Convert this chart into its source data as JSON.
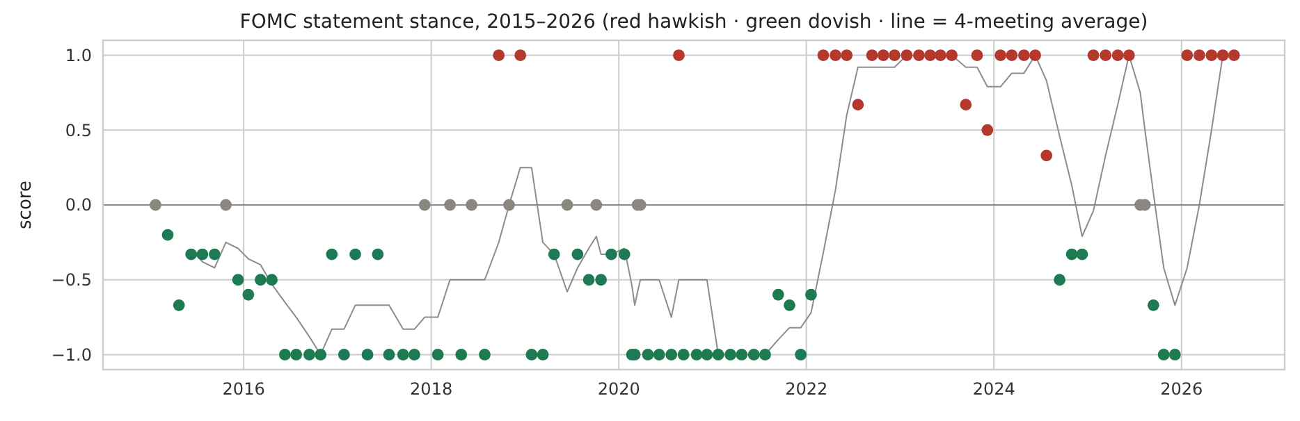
{
  "chart_data": {
    "type": "scatter",
    "title": "FOMC statement stance, 2015–2026 (red hawkish · green dovish · line = 4-meeting average)",
    "ylabel": "score",
    "xlim": [
      2014.5,
      2027.1
    ],
    "xticks": [
      2016,
      2018,
      2020,
      2022,
      2024,
      2026
    ],
    "ylim": [
      -1.1,
      1.1
    ],
    "yticks": [
      {
        "value": -1,
        "label": "−1.0"
      },
      {
        "value": -0.5,
        "label": "−0.5"
      },
      {
        "value": 0,
        "label": "0.0"
      },
      {
        "value": 0.5,
        "label": "0.5"
      },
      {
        "value": 1,
        "label": "1.0"
      }
    ],
    "grid": true,
    "marker": "circle",
    "ref_lines": [
      {
        "axis": "y",
        "value": 0,
        "label": null,
        "color": "#8a8a8a"
      }
    ],
    "series": [
      {
        "type": "line",
        "color": "#8c8c8c",
        "marker": "none",
        "line_style": "solid",
        "x": [
          2015.44,
          2015.56,
          2015.69,
          2015.81,
          2015.94,
          2016.05,
          2016.18,
          2016.3,
          2016.44,
          2016.56,
          2016.7,
          2016.82,
          2016.94,
          2017.07,
          2017.19,
          2017.32,
          2017.43,
          2017.55,
          2017.7,
          2017.82,
          2017.93,
          2018.07,
          2018.2,
          2018.32,
          2018.43,
          2018.57,
          2018.72,
          2018.83,
          2018.95,
          2019.07,
          2019.19,
          2019.31,
          2019.45,
          2019.56,
          2019.68,
          2019.76,
          2019.81,
          2019.92,
          2020.06,
          2020.14,
          2020.17,
          2020.2,
          2020.23,
          2020.31,
          2020.43,
          2020.56,
          2020.64,
          2020.69,
          2020.83,
          2020.94,
          2021.06,
          2021.19,
          2021.31,
          2021.44,
          2021.56,
          2021.7,
          2021.82,
          2021.94,
          2022.05,
          2022.18,
          2022.31,
          2022.43,
          2022.55,
          2022.7,
          2022.82,
          2022.94,
          2023.07,
          2023.2,
          2023.32,
          2023.43,
          2023.55,
          2023.7,
          2023.82,
          2023.93,
          2024.07,
          2024.19,
          2024.32,
          2024.44,
          2024.56,
          2024.7,
          2024.83,
          2024.94,
          2025.06,
          2025.19,
          2025.32,
          2025.44,
          2025.56,
          2025.61,
          2025.7,
          2025.81,
          2025.93,
          2026.06,
          2026.19,
          2026.32,
          2026.44,
          2026.56
        ],
        "values": [
          -0.3,
          -0.38,
          -0.42,
          -0.25,
          -0.29,
          -0.36,
          -0.4,
          -0.53,
          -0.65,
          -0.75,
          -0.88,
          -1,
          -0.83,
          -0.83,
          -0.67,
          -0.67,
          -0.67,
          -0.67,
          -0.83,
          -0.83,
          -0.75,
          -0.75,
          -0.5,
          -0.5,
          -0.5,
          -0.5,
          -0.25,
          0,
          0.25,
          0.25,
          -0.25,
          -0.33,
          -0.58,
          -0.42,
          -0.29,
          -0.21,
          -0.33,
          -0.33,
          -0.29,
          -0.54,
          -0.67,
          -0.58,
          -0.5,
          -0.5,
          -0.5,
          -0.75,
          -0.5,
          -0.5,
          -0.5,
          -0.5,
          -1,
          -1,
          -1,
          -1,
          -1,
          -0.9,
          -0.82,
          -0.82,
          -0.72,
          -0.32,
          0.1,
          0.6,
          0.92,
          0.92,
          0.92,
          0.92,
          1,
          1,
          1,
          1,
          1,
          0.92,
          0.92,
          0.79,
          0.79,
          0.88,
          0.88,
          1,
          0.83,
          0.46,
          0.13,
          -0.21,
          -0.04,
          0.33,
          0.67,
          1,
          0.75,
          0.5,
          0.08,
          -0.42,
          -0.67,
          -0.42,
          0,
          0.5,
          1,
          1
        ]
      },
      {
        "color": "#8a8780",
        "x": [
          2015.06,
          2015.81,
          2017.93,
          2018.2,
          2018.43,
          2018.83,
          2019.45,
          2019.76,
          2020.2,
          2020.23,
          2025.56,
          2025.61
        ],
        "values": [
          0,
          0,
          0,
          0,
          0,
          0,
          0,
          0,
          0,
          0,
          0,
          0
        ]
      },
      {
        "color": "#1e7a52",
        "x": [
          2015.19,
          2015.31,
          2015.44,
          2015.56,
          2015.69,
          2015.94,
          2016.05,
          2016.18,
          2016.3,
          2016.44,
          2016.56,
          2016.7,
          2016.82,
          2016.94,
          2017.07,
          2017.19,
          2017.32,
          2017.43,
          2017.55,
          2017.7,
          2017.82,
          2018.07,
          2018.32,
          2018.57,
          2019.07,
          2019.19,
          2019.31,
          2019.56,
          2019.68,
          2019.81,
          2019.92,
          2020.06,
          2020.14,
          2020.17,
          2020.31,
          2020.43,
          2020.56,
          2020.69,
          2020.83,
          2020.94,
          2021.06,
          2021.19,
          2021.31,
          2021.44,
          2021.56,
          2021.7,
          2021.82,
          2021.94,
          2022.05,
          2024.7,
          2024.83,
          2024.94,
          2025.7,
          2025.81,
          2025.93
        ],
        "values": [
          -0.2,
          -0.67,
          -0.33,
          -0.33,
          -0.33,
          -0.5,
          -0.6,
          -0.5,
          -0.5,
          -1,
          -1,
          -1,
          -1,
          -0.33,
          -1,
          -0.33,
          -1,
          -0.33,
          -1,
          -1,
          -1,
          -1,
          -1,
          -1,
          -1,
          -1,
          -0.33,
          -0.33,
          -0.5,
          -0.5,
          -0.33,
          -0.33,
          -1,
          -1,
          -1,
          -1,
          -1,
          -1,
          -1,
          -1,
          -1,
          -1,
          -1,
          -1,
          -1,
          -0.6,
          -0.67,
          -1,
          -0.6,
          -0.5,
          -0.33,
          -0.33,
          -0.67,
          -1,
          -1
        ]
      },
      {
        "color": "#b5382c",
        "x": [
          2018.72,
          2018.95,
          2020.64,
          2022.18,
          2022.31,
          2022.43,
          2022.55,
          2022.7,
          2022.82,
          2022.94,
          2023.07,
          2023.2,
          2023.32,
          2023.43,
          2023.55,
          2023.7,
          2023.82,
          2023.93,
          2024.07,
          2024.19,
          2024.32,
          2024.44,
          2024.56,
          2025.06,
          2025.19,
          2025.32,
          2025.44,
          2026.06,
          2026.19,
          2026.32,
          2026.44,
          2026.56
        ],
        "values": [
          1,
          1,
          1,
          1,
          1,
          1,
          0.67,
          1,
          1,
          1,
          1,
          1,
          1,
          1,
          1,
          0.67,
          1,
          0.5,
          1,
          1,
          1,
          1,
          0.33,
          1,
          1,
          1,
          1,
          1,
          1,
          1,
          1,
          1
        ]
      }
    ]
  }
}
